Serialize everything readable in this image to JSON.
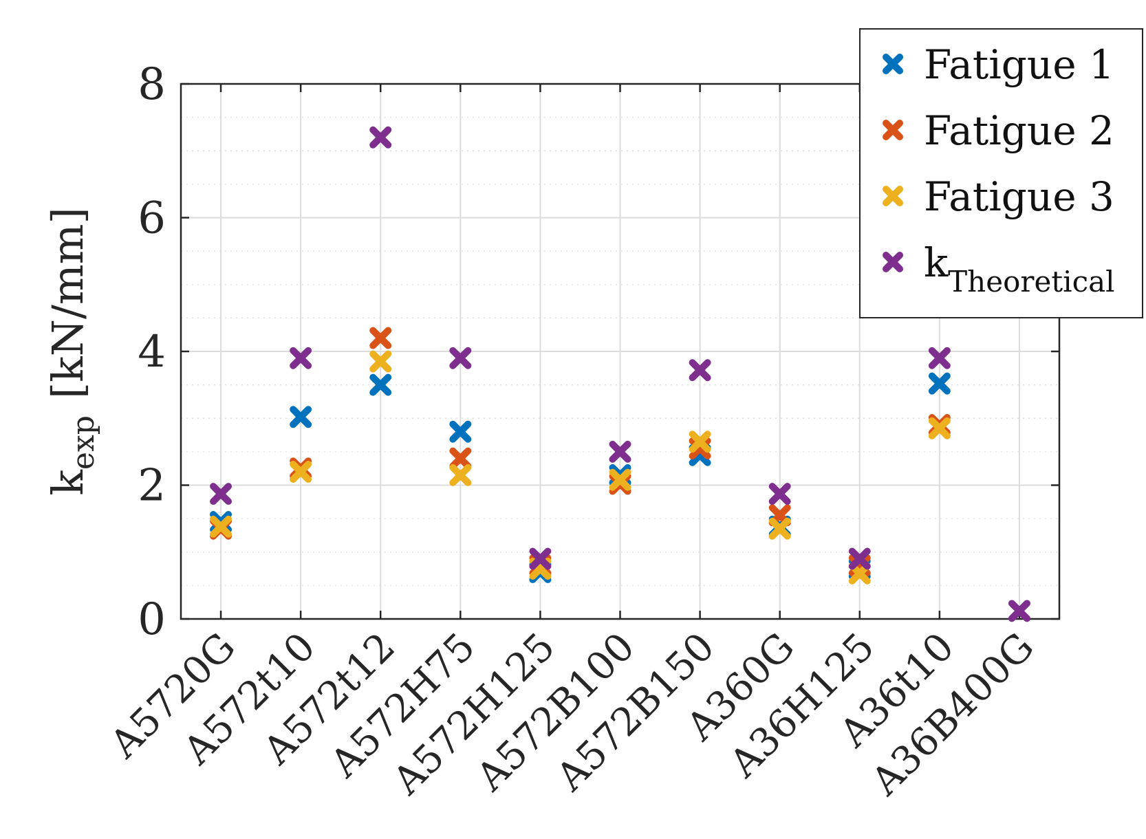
{
  "chart_data": {
    "type": "scatter",
    "categories": [
      "A5720G",
      "A572t10",
      "A572t12",
      "A572H75",
      "A572H125",
      "A572B100",
      "A572B150",
      "A360G",
      "A36H125",
      "A36t10",
      "A36B400G"
    ],
    "ylabel": {
      "main": "k",
      "sub": "exp",
      "unit": "[kN/mm]"
    },
    "ylim": [
      0,
      8
    ],
    "yticks": [
      "0",
      "2",
      "4",
      "6",
      "8"
    ],
    "grid": true,
    "minor_grid": true,
    "legend_position": "top-right",
    "series": [
      {
        "name": "Fatigue 1",
        "name_sub": "",
        "color": "#0072BD",
        "values": [
          1.45,
          3.02,
          3.5,
          2.8,
          0.7,
          2.15,
          2.45,
          1.38,
          0.75,
          3.52,
          null
        ]
      },
      {
        "name": "Fatigue 2",
        "name_sub": "",
        "color": "#D95319",
        "values": [
          1.35,
          2.25,
          4.2,
          2.4,
          0.8,
          2.02,
          2.55,
          1.55,
          0.8,
          2.9,
          null
        ]
      },
      {
        "name": "Fatigue 3",
        "name_sub": "",
        "color": "#EDB120",
        "values": [
          1.38,
          2.2,
          3.85,
          2.15,
          0.75,
          2.08,
          2.65,
          1.35,
          0.68,
          2.85,
          null
        ]
      },
      {
        "name": "k",
        "name_sub": "Theoretical",
        "color": "#7E2F8E",
        "values": [
          1.87,
          3.9,
          7.2,
          3.9,
          0.9,
          2.5,
          3.72,
          1.87,
          0.9,
          3.9,
          0.12
        ]
      }
    ]
  }
}
